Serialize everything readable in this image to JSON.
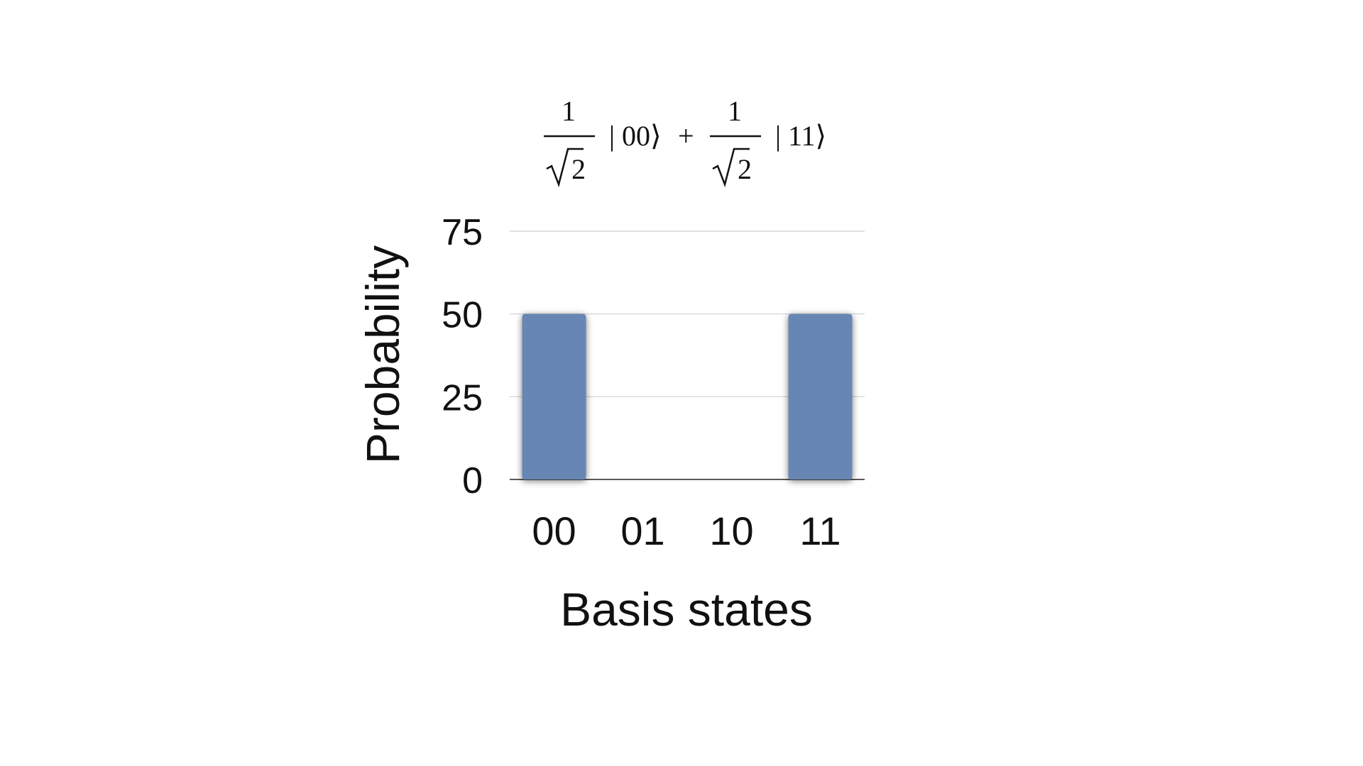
{
  "formula": {
    "numerator_1": "1",
    "denominator_1": "2",
    "ket_1": "| 00⟩",
    "plus": "+",
    "numerator_2": "1",
    "denominator_2": "2",
    "ket_2": "| 11⟩"
  },
  "chart_data": {
    "type": "bar",
    "categories": [
      "00",
      "01",
      "10",
      "11"
    ],
    "values": [
      50,
      0,
      0,
      50
    ],
    "xlabel": "Basis states",
    "ylabel": "Probability",
    "ylim": [
      0,
      75
    ],
    "yticks": [
      "0",
      "25",
      "50",
      "75"
    ],
    "grid": true,
    "bar_color": "#6886b4"
  }
}
